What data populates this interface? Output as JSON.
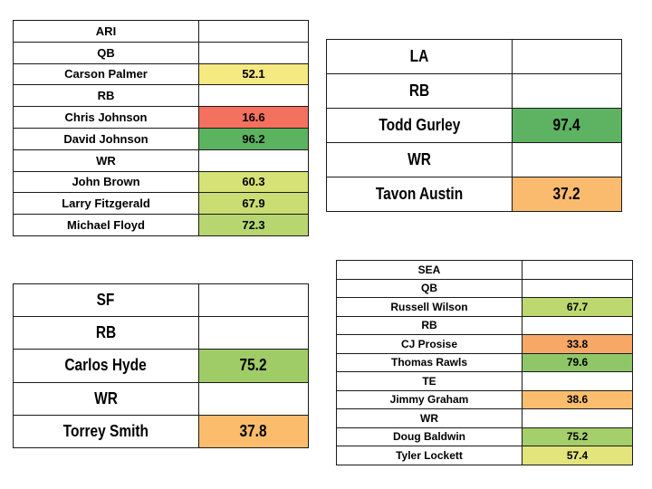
{
  "colors": {
    "red": "#f8696b",
    "dark_green": "#63be7b",
    "green": "#9bcf70",
    "light_green": "#b9d770",
    "yellow_green": "#d5df74",
    "yellow": "#f6e984",
    "orange": "#fbbf71",
    "dark_orange": "#f9a76b"
  },
  "ari": {
    "team": "ARI",
    "qb": "QB",
    "players": [
      {
        "name": "Carson Palmer",
        "score": "52.1",
        "color": "#f5e981"
      },
      {
        "name": "Chris Johnson",
        "score": "16.6",
        "color": "#f4705f"
      },
      {
        "name": "David Johnson",
        "score": "96.2",
        "color": "#5cb35f"
      },
      {
        "name": "John Brown",
        "score": "60.3",
        "color": "#d6e176"
      },
      {
        "name": "Larry Fitzgerald",
        "score": "67.9",
        "color": "#cadd73"
      },
      {
        "name": "Michael Floyd",
        "score": "72.3",
        "color": "#b8d66f"
      }
    ],
    "rb": "RB",
    "wr": "WR"
  },
  "la": {
    "team": "LA",
    "rb": "RB",
    "wr": "WR",
    "players": [
      {
        "name": "Todd Gurley",
        "score": "97.4",
        "color": "#5db361"
      },
      {
        "name": "Tavon Austin",
        "score": "37.2",
        "color": "#fbbb6f"
      }
    ]
  },
  "sf": {
    "team": "SF",
    "rb": "RB",
    "wr": "WR",
    "players": [
      {
        "name": "Carlos Hyde",
        "score": "75.2",
        "color": "#9fcc66"
      },
      {
        "name": "Torrey Smith",
        "score": "37.8",
        "color": "#fbbd6c"
      }
    ]
  },
  "sea": {
    "team": "SEA",
    "qb": "QB",
    "rb": "RB",
    "te": "TE",
    "wr": "WR",
    "players": [
      {
        "name": "Russell Wilson",
        "score": "67.7",
        "color": "#bcd86f"
      },
      {
        "name": "CJ Prosise",
        "score": "33.8",
        "color": "#f7a866"
      },
      {
        "name": "Thomas Rawls",
        "score": "79.6",
        "color": "#8fc768"
      },
      {
        "name": "Jimmy Graham",
        "score": "38.6",
        "color": "#fbbe6f"
      },
      {
        "name": "Doug Baldwin",
        "score": "75.2",
        "color": "#a4cf6b"
      },
      {
        "name": "Tyler Lockett",
        "score": "57.4",
        "color": "#e3e47b"
      }
    ]
  }
}
